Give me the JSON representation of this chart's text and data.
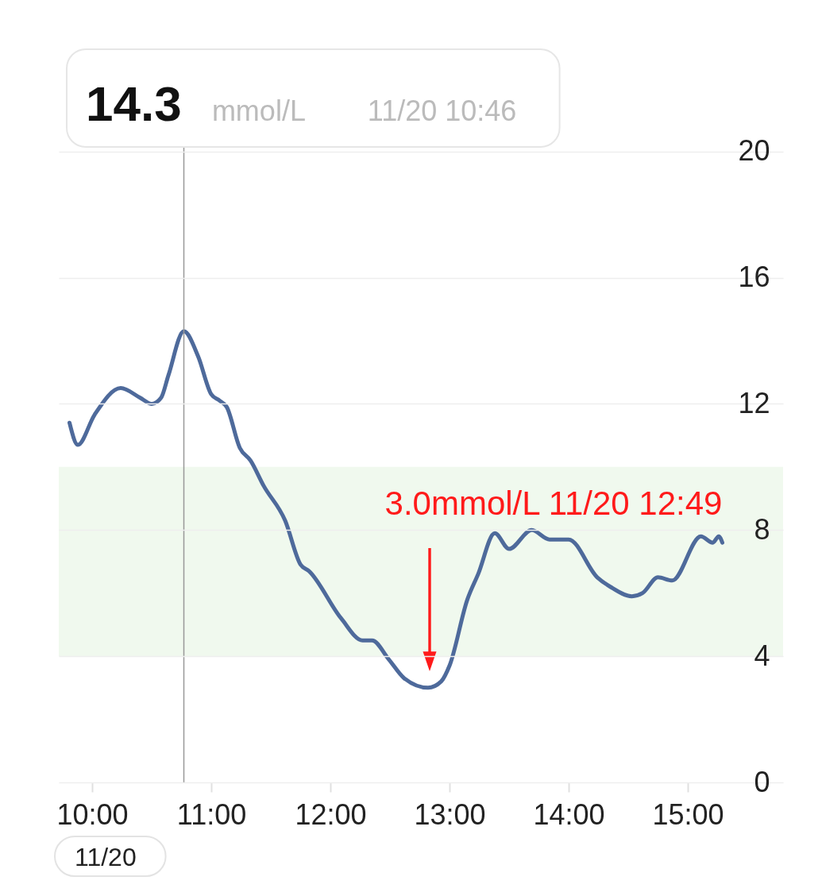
{
  "chart_data": {
    "type": "line",
    "x": [
      9.81,
      9.88,
      10.02,
      10.24,
      10.4,
      10.5,
      10.58,
      10.64,
      10.77,
      10.89,
      11.0,
      11.07,
      11.13,
      11.24,
      11.33,
      11.44,
      11.62,
      11.75,
      11.82,
      12.09,
      12.27,
      12.35,
      12.49,
      12.62,
      12.82,
      12.93,
      13.0,
      13.15,
      13.24,
      13.38,
      13.5,
      13.69,
      13.84,
      14.0,
      14.24,
      14.35,
      14.53,
      14.62,
      14.75,
      14.87,
      15.11,
      15.21,
      15.26,
      15.29
    ],
    "series": [
      {
        "color": "#4e6a9b",
        "values": [
          11.4,
          10.7,
          11.65,
          12.5,
          12.2,
          12.0,
          12.2,
          12.9,
          14.3,
          13.5,
          12.3,
          12.1,
          11.9,
          10.6,
          10.2,
          9.4,
          8.3,
          6.9,
          6.7,
          5.2,
          4.5,
          4.5,
          3.9,
          3.3,
          3.0,
          3.2,
          3.7,
          5.8,
          6.6,
          7.9,
          7.4,
          8.0,
          7.7,
          7.7,
          6.5,
          6.2,
          5.9,
          6.0,
          6.5,
          6.4,
          7.8,
          7.6,
          7.8,
          7.6
        ]
      }
    ],
    "xlim": [
      9.72,
      15.8
    ],
    "xticks": [
      {
        "value": 10,
        "label": "10:00"
      },
      {
        "value": 11,
        "label": "11:00"
      },
      {
        "value": 12,
        "label": "12:00"
      },
      {
        "value": 13,
        "label": "13:00"
      },
      {
        "value": 14,
        "label": "14:00"
      },
      {
        "value": 15,
        "label": "15:00"
      }
    ],
    "ylim": [
      0,
      24.8
    ],
    "yticks": [
      0,
      4,
      8,
      12,
      16,
      20
    ],
    "grid": "y",
    "line_style": "solid",
    "ref_lines": [
      {
        "axis": "x",
        "value": 10.77,
        "color": "#999999"
      }
    ],
    "bands": [
      {
        "axis": "y",
        "from": 4,
        "to": 10,
        "color": "#f0f9ee"
      }
    ],
    "annotations": [
      "14.3",
      "mmol/L",
      "11/20 10:46",
      "3.0mmol/L 11/20 12:49",
      "11/20"
    ]
  }
}
